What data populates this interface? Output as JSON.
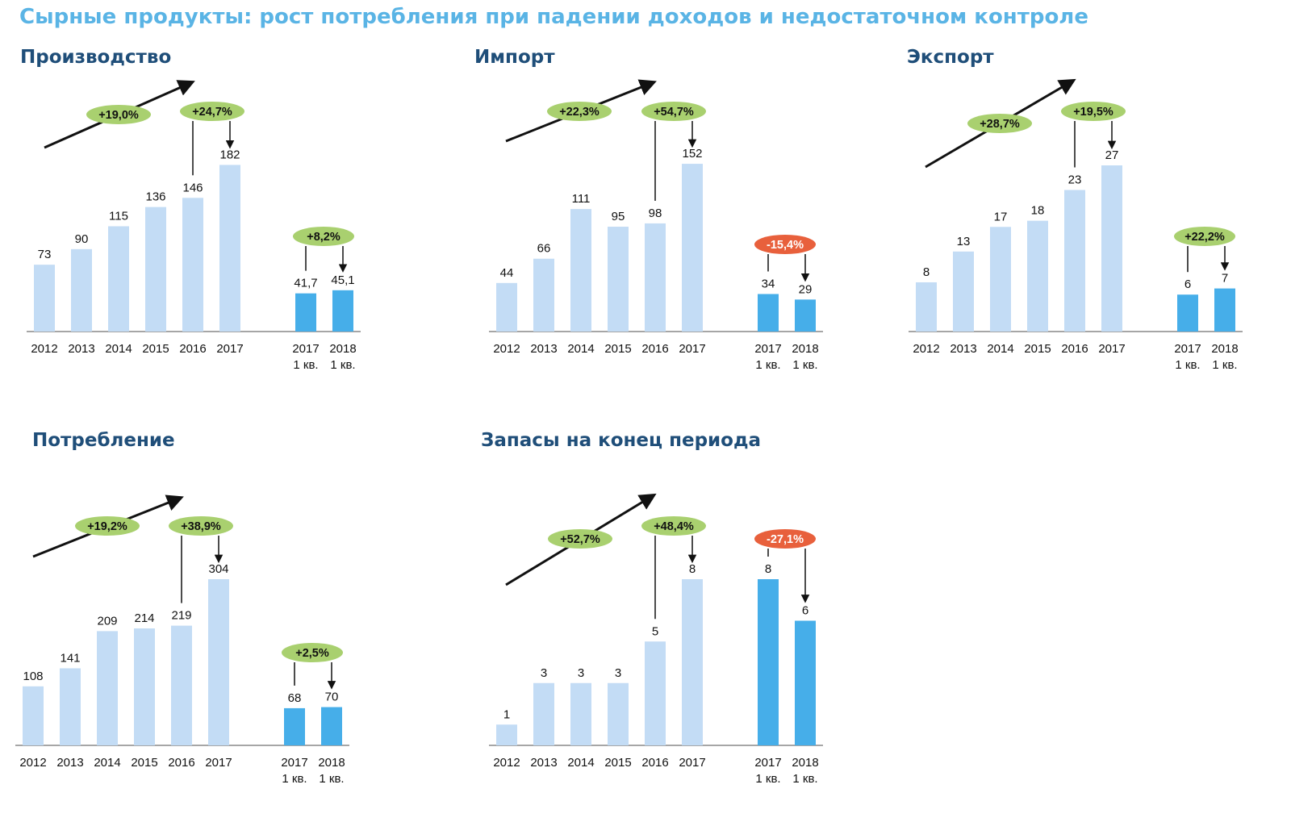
{
  "title": "Сырные продукты: рост потребления при падении доходов и недостаточном контроле",
  "colors": {
    "title": "#5ab4e5",
    "heading": "#1f4e79",
    "bar_annual": "#c3dcf5",
    "bar_quarter": "#46aee9",
    "badge_positive": "#a9d06f",
    "badge_negative": "#e8603c"
  },
  "chart_data": [
    {
      "type": "bar",
      "title": "Производство",
      "categories": [
        "2012",
        "2013",
        "2014",
        "2015",
        "2016",
        "2017",
        "2017\n1 кв.",
        "2018\n1 кв."
      ],
      "values": [
        73,
        90,
        115,
        136,
        146,
        182,
        41.7,
        45.1
      ],
      "value_labels": [
        "73",
        "90",
        "115",
        "136",
        "146",
        "182",
        "41,7",
        "45,1"
      ],
      "badges": {
        "trend": "+19,0%",
        "last_year": "+24,7%",
        "quarter": "+8,2%"
      },
      "quarter_change_sign": "positive"
    },
    {
      "type": "bar",
      "title": "Импорт",
      "categories": [
        "2012",
        "2013",
        "2014",
        "2015",
        "2016",
        "2017",
        "2017\n1 кв.",
        "2018\n1 кв."
      ],
      "values": [
        44,
        66,
        111,
        95,
        98,
        152,
        34,
        29
      ],
      "value_labels": [
        "44",
        "66",
        "111",
        "95",
        "98",
        "152",
        "34",
        "29"
      ],
      "badges": {
        "trend": "+22,3%",
        "last_year": "+54,7%",
        "quarter": "-15,4%"
      },
      "quarter_change_sign": "negative"
    },
    {
      "type": "bar",
      "title": "Экспорт",
      "categories": [
        "2012",
        "2013",
        "2014",
        "2015",
        "2016",
        "2017",
        "2017\n1 кв.",
        "2018\n1 кв."
      ],
      "values": [
        8,
        13,
        17,
        18,
        23,
        27,
        6,
        7
      ],
      "value_labels": [
        "8",
        "13",
        "17",
        "18",
        "23",
        "27",
        "6",
        "7"
      ],
      "badges": {
        "trend": "+28,7%",
        "last_year": "+19,5%",
        "quarter": "+22,2%"
      },
      "quarter_change_sign": "positive"
    },
    {
      "type": "bar",
      "title": "Потребление",
      "categories": [
        "2012",
        "2013",
        "2014",
        "2015",
        "2016",
        "2017",
        "2017\n1 кв.",
        "2018\n1 кв."
      ],
      "values": [
        108,
        141,
        209,
        214,
        219,
        304,
        68,
        70
      ],
      "value_labels": [
        "108",
        "141",
        "209",
        "214",
        "219",
        "304",
        "68",
        "70"
      ],
      "badges": {
        "trend": "+19,2%",
        "last_year": "+38,9%",
        "quarter": "+2,5%"
      },
      "quarter_change_sign": "positive"
    },
    {
      "type": "bar",
      "title": "Запасы на конец периода",
      "categories": [
        "2012",
        "2013",
        "2014",
        "2015",
        "2016",
        "2017",
        "2017\n1 кв.",
        "2018\n1 кв."
      ],
      "values": [
        1,
        3,
        3,
        3,
        5,
        8,
        8,
        6
      ],
      "value_labels": [
        "1",
        "3",
        "3",
        "3",
        "5",
        "8",
        "8",
        "6"
      ],
      "badges": {
        "trend": "+52,7%",
        "last_year": "+48,4%",
        "quarter": "-27,1%"
      },
      "quarter_change_sign": "negative"
    }
  ]
}
